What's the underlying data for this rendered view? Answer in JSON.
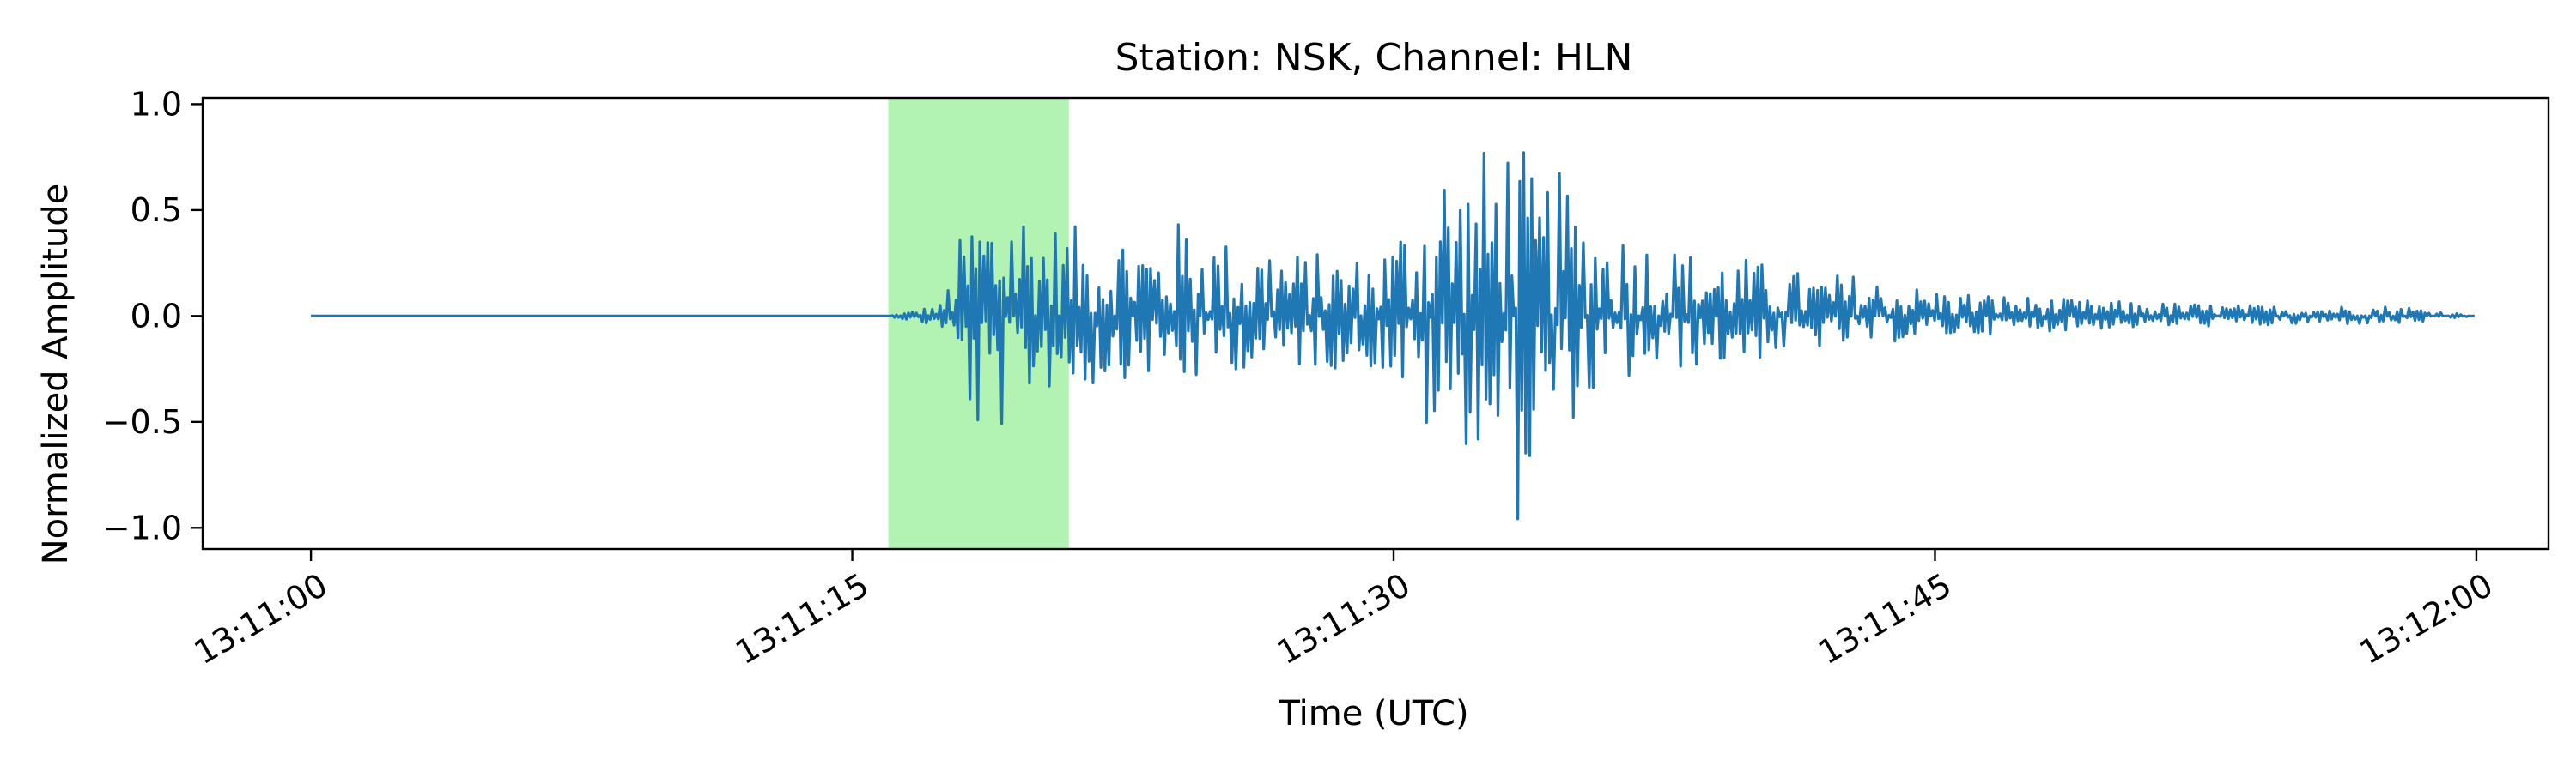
{
  "chart_data": {
    "type": "line",
    "title": "Station: NSK, Channel: HLN",
    "xlabel": "Time (UTC)",
    "ylabel": "Normalized Amplitude",
    "x_unit": "seconds after 13:11:00 UTC",
    "xlim": [
      -3,
      62
    ],
    "ylim": [
      -1.1,
      1.03
    ],
    "x_ticks": [
      {
        "value": 0,
        "label": "13:11:00"
      },
      {
        "value": 15,
        "label": "13:11:15"
      },
      {
        "value": 30,
        "label": "13:11:30"
      },
      {
        "value": 45,
        "label": "13:11:45"
      },
      {
        "value": 60,
        "label": "13:12:00"
      }
    ],
    "y_ticks": [
      {
        "value": 1.0,
        "label": "1.0"
      },
      {
        "value": 0.5,
        "label": "0.5"
      },
      {
        "value": 0.0,
        "label": "0.0"
      },
      {
        "value": -0.5,
        "label": "−0.5"
      },
      {
        "value": -1.0,
        "label": "−1.0"
      }
    ],
    "highlight": {
      "x_start": 16.0,
      "x_end": 21.0,
      "color": "#b2f2b2"
    },
    "grid": false,
    "series": [
      {
        "color": "#1f77b4",
        "x": [
          0,
          5,
          10,
          16.0,
          17.5,
          18.0,
          18.6,
          19.0,
          19.4,
          19.9,
          20.5,
          21.3,
          22.0,
          22.8,
          23.5,
          24.3,
          25.0,
          25.8,
          26.6,
          27.4,
          28.3,
          29.2,
          30.0,
          30.8,
          31.4,
          31.9,
          32.4,
          32.9,
          33.4,
          33.9,
          34.5,
          35.2,
          35.9,
          36.7,
          37.5,
          38.4,
          39.3,
          40.3,
          41.5,
          42.8,
          44.0,
          45.5,
          47.0,
          48.5,
          50.0,
          52.0,
          54.0,
          56.0,
          58.0,
          60.0
        ],
        "y": [
          0.0,
          0.0,
          0.0,
          0.0,
          0.06,
          0.38,
          0.6,
          0.55,
          0.62,
          0.55,
          0.45,
          0.42,
          0.4,
          0.45,
          0.35,
          0.5,
          0.4,
          0.32,
          0.38,
          0.3,
          0.3,
          0.28,
          0.4,
          0.62,
          0.8,
          0.7,
          0.78,
          0.88,
          0.92,
          0.62,
          0.7,
          0.55,
          0.45,
          0.4,
          0.35,
          0.3,
          0.3,
          0.25,
          0.2,
          0.2,
          0.15,
          0.12,
          0.1,
          0.08,
          0.07,
          0.06,
          0.05,
          0.05,
          0.05,
          0.0
        ],
        "y_lower": [
          0.0,
          0.0,
          0.0,
          0.0,
          -0.06,
          -0.3,
          -0.7,
          -0.58,
          -0.5,
          -0.4,
          -0.35,
          -0.38,
          -0.32,
          -0.28,
          -0.3,
          -0.35,
          -0.28,
          -0.25,
          -0.27,
          -0.25,
          -0.25,
          -0.24,
          -0.3,
          -0.55,
          -0.7,
          -0.6,
          -0.65,
          -0.75,
          -1.0,
          -0.8,
          -0.58,
          -0.45,
          -0.38,
          -0.3,
          -0.28,
          -0.24,
          -0.24,
          -0.2,
          -0.16,
          -0.15,
          -0.12,
          -0.1,
          -0.08,
          -0.07,
          -0.06,
          -0.05,
          -0.05,
          -0.04,
          -0.04,
          0.0
        ]
      }
    ]
  }
}
